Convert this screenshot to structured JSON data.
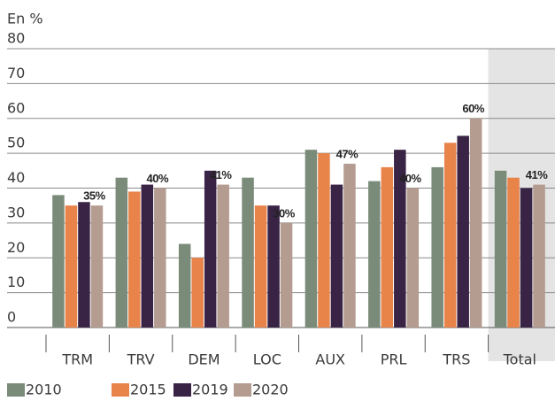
{
  "chart_data": {
    "type": "bar",
    "y_label": "En %",
    "categories": [
      "TRM",
      "TRV",
      "DEM",
      "LOC",
      "AUX",
      "PRL",
      "TRS",
      "Total"
    ],
    "series": [
      {
        "name": "2010",
        "color": "#7b8b79",
        "values": [
          38,
          43,
          24,
          43,
          51,
          42,
          46,
          45
        ]
      },
      {
        "name": "2015",
        "color": "#e8834a",
        "values": [
          35,
          39,
          20,
          35,
          50,
          46,
          53,
          43
        ]
      },
      {
        "name": "2019",
        "color": "#3a2446",
        "values": [
          36,
          41,
          45,
          35,
          41,
          51,
          55,
          40
        ]
      },
      {
        "name": "2020",
        "color": "#b59c90",
        "values": [
          35,
          40,
          41,
          30,
          47,
          40,
          60,
          41
        ],
        "value_labels": [
          "35%",
          "40%",
          "41%",
          "30%",
          "47%",
          "40%",
          "60%",
          "41%"
        ]
      }
    ],
    "ylim": [
      0,
      80
    ],
    "yticks": [
      0,
      10,
      20,
      30,
      40,
      50,
      60,
      70,
      80
    ],
    "grid": true,
    "highlight_index": 7,
    "highlight_color": "#e4e4e4"
  }
}
